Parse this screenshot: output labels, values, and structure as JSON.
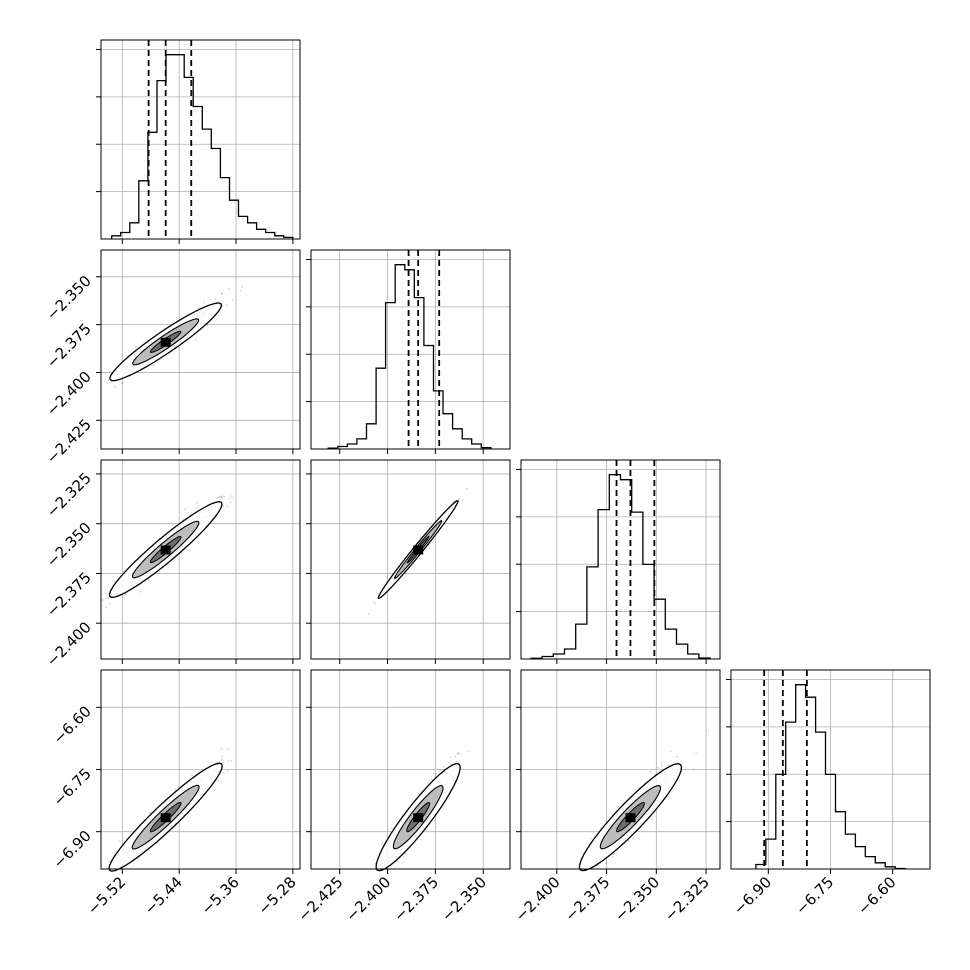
{
  "chart_data": {
    "type": "corner",
    "parameters": [
      {
        "index": 0,
        "ticks": [
          -5.52,
          -5.44,
          -5.36,
          -5.28
        ],
        "tick_labels": [
          "−5.52",
          "−5.44",
          "−5.36",
          "−5.28"
        ],
        "range": [
          -5.55,
          -5.27
        ]
      },
      {
        "index": 1,
        "ticks": [
          -2.425,
          -2.4,
          -2.375,
          -2.35
        ],
        "tick_labels": [
          "−2.425",
          "−2.400",
          "−2.375",
          "−2.350"
        ],
        "range": [
          -2.44,
          -2.336
        ]
      },
      {
        "index": 2,
        "ticks": [
          -2.4,
          -2.375,
          -2.35,
          -2.325
        ],
        "tick_labels": [
          "−2.400",
          "−2.375",
          "−2.350",
          "−2.325"
        ],
        "range": [
          -2.418,
          -2.318
        ]
      },
      {
        "index": 3,
        "ticks": [
          -6.9,
          -6.75,
          -6.6
        ],
        "tick_labels": [
          "−6.90",
          "−6.75",
          "−6.60"
        ],
        "range": [
          -6.99,
          -6.51
        ]
      }
    ],
    "quantiles_16_50_84": [
      [
        -5.483,
        -5.459,
        -5.423
      ],
      [
        -2.389,
        -2.384,
        -2.373
      ],
      [
        -2.37,
        -2.363,
        -2.351
      ],
      [
        -6.91,
        -6.865,
        -6.807
      ]
    ],
    "histograms": [
      [
        1,
        2,
        5,
        18,
        33,
        49,
        57,
        57,
        50,
        41,
        34,
        28,
        19,
        12,
        7,
        5,
        3,
        2,
        1,
        0.5
      ],
      [
        0.3,
        1,
        2,
        4,
        10,
        32,
        58,
        73,
        71,
        60,
        41,
        23,
        14,
        8,
        4,
        2,
        0.5
      ],
      [
        0.3,
        1,
        2,
        4,
        14,
        37,
        60,
        74,
        72,
        59,
        38,
        24,
        12,
        6,
        2,
        0.4
      ],
      [
        1.8,
        12,
        38,
        59,
        74,
        69,
        55,
        38,
        23,
        14,
        9,
        5,
        2.5,
        0.9,
        0.2
      ]
    ],
    "correlations": [
      [
        1,
        0.95,
        0.95,
        0.95
      ],
      [
        0.95,
        1,
        0.995,
        0.93
      ],
      [
        0.95,
        0.995,
        1,
        0.93
      ],
      [
        0.95,
        0.93,
        0.93,
        1
      ]
    ],
    "xlabel": "",
    "ylabel": "",
    "title": "",
    "grid": true
  }
}
